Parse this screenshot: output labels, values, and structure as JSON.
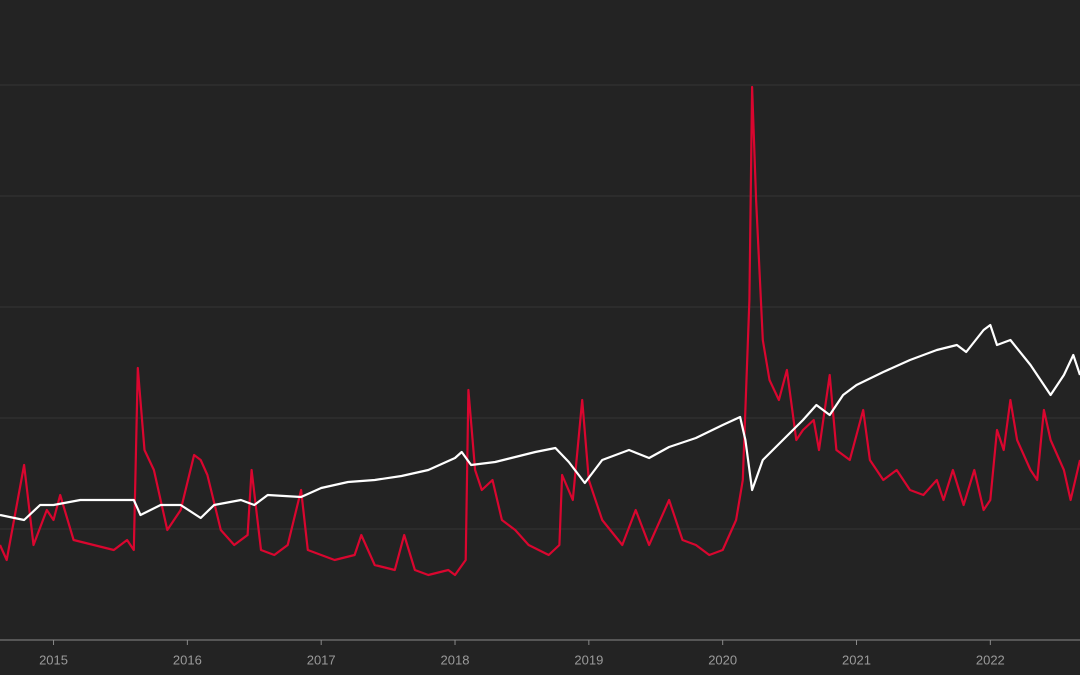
{
  "chart_data": {
    "type": "line",
    "xlim": [
      2014.6,
      2022.67
    ],
    "xticks": [
      2015,
      2016,
      2017,
      2018,
      2019,
      2020,
      2021,
      2022
    ],
    "ylim": [
      0,
      555
    ],
    "yticks": [
      0,
      111,
      222,
      333,
      444,
      555
    ],
    "grid": true,
    "series": [
      {
        "color": "#d9062f",
        "x": [
          2014.6,
          2014.65,
          2014.78,
          2014.85,
          2014.95,
          2015.0,
          2015.05,
          2015.15,
          2015.3,
          2015.45,
          2015.55,
          2015.6,
          2015.63,
          2015.68,
          2015.75,
          2015.85,
          2015.95,
          2016.05,
          2016.1,
          2016.15,
          2016.25,
          2016.35,
          2016.45,
          2016.48,
          2016.55,
          2016.65,
          2016.75,
          2016.85,
          2016.9,
          2017.0,
          2017.1,
          2017.25,
          2017.3,
          2017.4,
          2017.55,
          2017.62,
          2017.7,
          2017.8,
          2017.95,
          2018.0,
          2018.08,
          2018.1,
          2018.15,
          2018.2,
          2018.28,
          2018.35,
          2018.45,
          2018.55,
          2018.7,
          2018.78,
          2018.8,
          2018.88,
          2018.95,
          2019.0,
          2019.1,
          2019.25,
          2019.35,
          2019.45,
          2019.6,
          2019.7,
          2019.8,
          2019.9,
          2020.0,
          2020.1,
          2020.15,
          2020.2,
          2020.22,
          2020.25,
          2020.3,
          2020.35,
          2020.42,
          2020.48,
          2020.55,
          2020.6,
          2020.68,
          2020.72,
          2020.8,
          2020.85,
          2020.95,
          2021.05,
          2021.1,
          2021.2,
          2021.3,
          2021.4,
          2021.5,
          2021.6,
          2021.65,
          2021.72,
          2021.8,
          2021.88,
          2021.95,
          2022.0,
          2022.05,
          2022.1,
          2022.15,
          2022.2,
          2022.3,
          2022.35,
          2022.4,
          2022.45,
          2022.55,
          2022.6,
          2022.67
        ],
        "values": [
          95,
          80,
          175,
          95,
          130,
          120,
          145,
          100,
          95,
          90,
          100,
          90,
          272,
          190,
          170,
          110,
          130,
          185,
          180,
          165,
          110,
          95,
          105,
          170,
          90,
          85,
          95,
          150,
          90,
          85,
          80,
          85,
          105,
          75,
          70,
          105,
          70,
          65,
          70,
          65,
          80,
          250,
          170,
          150,
          160,
          120,
          110,
          95,
          85,
          95,
          165,
          140,
          240,
          160,
          120,
          95,
          130,
          95,
          140,
          100,
          95,
          85,
          90,
          120,
          160,
          340,
          553,
          440,
          300,
          260,
          240,
          270,
          200,
          210,
          220,
          190,
          265,
          190,
          180,
          230,
          180,
          160,
          170,
          150,
          145,
          160,
          140,
          170,
          135,
          170,
          130,
          140,
          210,
          190,
          240,
          200,
          170,
          160,
          230,
          200,
          170,
          140,
          180
        ]
      },
      {
        "color": "#ffffff",
        "x": [
          2014.6,
          2014.78,
          2014.9,
          2015.0,
          2015.2,
          2015.4,
          2015.6,
          2015.65,
          2015.8,
          2015.95,
          2016.1,
          2016.2,
          2016.4,
          2016.5,
          2016.6,
          2016.85,
          2017.0,
          2017.2,
          2017.4,
          2017.6,
          2017.8,
          2018.0,
          2018.05,
          2018.12,
          2018.3,
          2018.6,
          2018.75,
          2018.85,
          2018.97,
          2019.1,
          2019.3,
          2019.45,
          2019.6,
          2019.8,
          2020.0,
          2020.13,
          2020.17,
          2020.22,
          2020.3,
          2020.45,
          2020.6,
          2020.7,
          2020.8,
          2020.9,
          2021.0,
          2021.2,
          2021.4,
          2021.6,
          2021.75,
          2021.82,
          2021.95,
          2022.0,
          2022.05,
          2022.15,
          2022.3,
          2022.45,
          2022.55,
          2022.62,
          2022.67
        ],
        "values": [
          125,
          120,
          135,
          135,
          140,
          140,
          140,
          125,
          135,
          135,
          122,
          135,
          140,
          135,
          145,
          143,
          152,
          158,
          160,
          164,
          170,
          182,
          188,
          175,
          178,
          188,
          192,
          178,
          157,
          180,
          190,
          182,
          193,
          202,
          215,
          223,
          200,
          150,
          180,
          200,
          220,
          235,
          225,
          245,
          255,
          268,
          280,
          290,
          295,
          288,
          310,
          315,
          295,
          300,
          275,
          245,
          265,
          285,
          265
        ]
      }
    ]
  }
}
